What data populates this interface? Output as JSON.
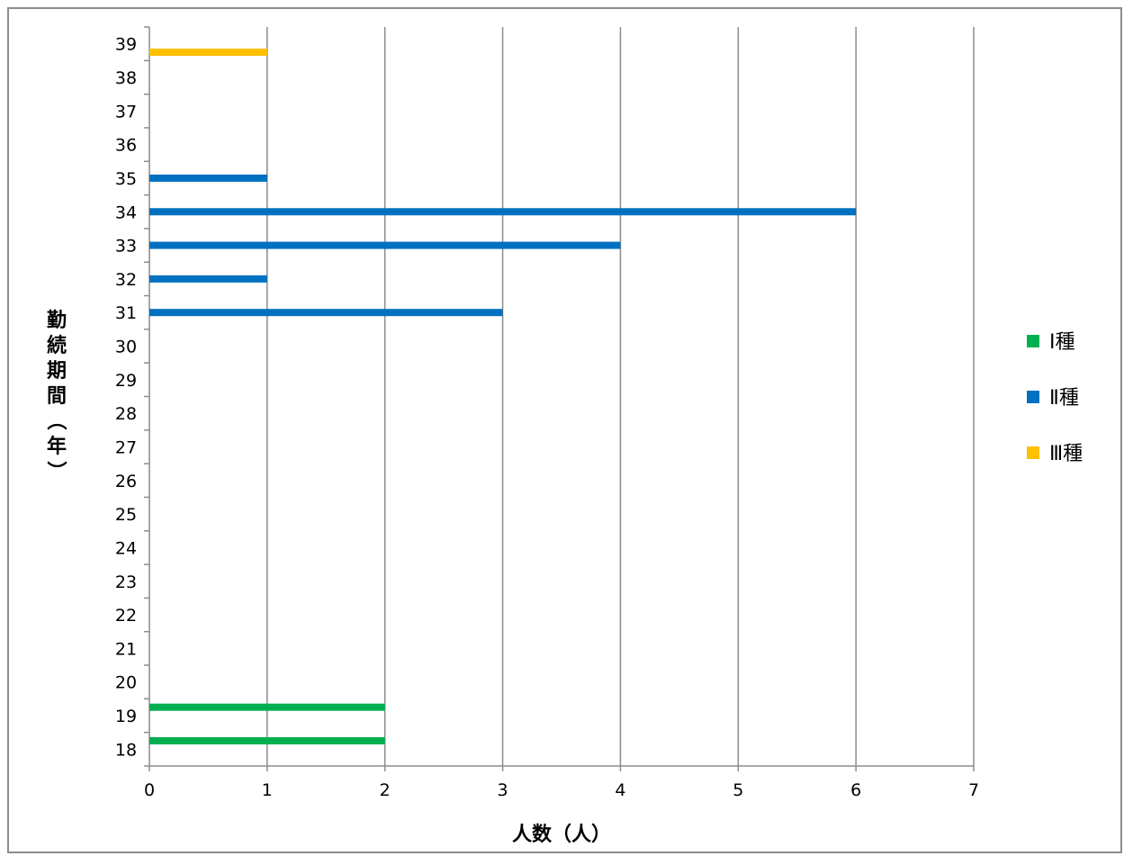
{
  "chart_data": {
    "type": "bar",
    "orientation": "horizontal",
    "categories": [
      "18",
      "19",
      "20",
      "21",
      "22",
      "23",
      "24",
      "25",
      "26",
      "27",
      "28",
      "29",
      "30",
      "31",
      "32",
      "33",
      "34",
      "35",
      "36",
      "37",
      "38",
      "39"
    ],
    "series": [
      {
        "name": "Ⅰ種",
        "color": "#00b050",
        "values": [
          2,
          2,
          0,
          0,
          0,
          0,
          0,
          0,
          0,
          0,
          0,
          0,
          0,
          0,
          0,
          0,
          0,
          0,
          0,
          0,
          0,
          0
        ]
      },
      {
        "name": "Ⅱ種",
        "color": "#0070c0",
        "values": [
          0,
          0,
          0,
          0,
          0,
          0,
          0,
          0,
          0,
          0,
          0,
          0,
          0,
          3,
          1,
          4,
          6,
          1,
          0,
          0,
          0,
          0
        ]
      },
      {
        "name": "Ⅲ種",
        "color": "#ffc000",
        "values": [
          0,
          0,
          0,
          0,
          0,
          0,
          0,
          0,
          0,
          0,
          0,
          0,
          0,
          0,
          0,
          0,
          0,
          0,
          0,
          0,
          0,
          1
        ]
      }
    ],
    "xlabel": "人数（人）",
    "ylabel": "勤続期間（年）",
    "xlim": [
      0,
      7
    ],
    "x_ticks": [
      "0",
      "1",
      "2",
      "3",
      "4",
      "5",
      "6",
      "7"
    ],
    "grid": "vertical",
    "legend_position": "right"
  }
}
